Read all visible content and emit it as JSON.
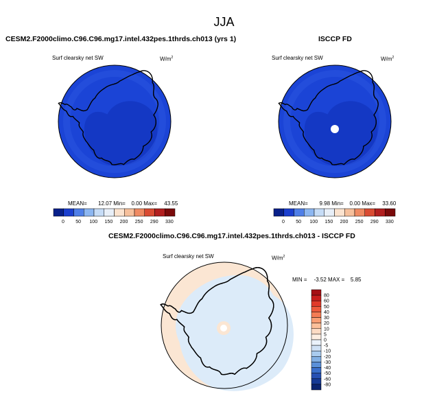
{
  "season": "JJA",
  "panels": [
    {
      "title": "CESM2.F2000climo.C96.C96.mg17.intel.432pes.1thrds.ch013 (yrs 1)",
      "variable": "Surf clearsky net SW",
      "units_base": "W/m",
      "units_exp": "2",
      "stats": {
        "mean_label": "MEAN=",
        "mean": "12.07",
        "min_label": "Min=",
        "min": "0.00",
        "max_label": "Max=",
        "max": "43.55"
      }
    },
    {
      "title": "ISCCP FD",
      "variable": "Surf clearsky net SW",
      "units_base": "W/m",
      "units_exp": "2",
      "stats": {
        "mean_label": "MEAN=",
        "mean": "9.98",
        "min_label": "Min=",
        "min": "0.00",
        "max_label": "Max=",
        "max": "33.60"
      }
    },
    {
      "title": "CESM2.F2000climo.C96.C96.mg17.intel.432pes.1thrds.ch013 - ISCCP FD",
      "variable": "Surf clearsky net SW",
      "units_base": "W/m",
      "units_exp": "2",
      "stats": {
        "min_label": "MIN =",
        "min": "-3.52",
        "max_label": "MAX =",
        "max": "5.85"
      }
    }
  ],
  "chart_data": [
    {
      "type": "heatmap",
      "projection": "south polar stereographic",
      "colorbar": {
        "orientation": "horizontal",
        "levels": [
          0,
          50,
          100,
          150,
          200,
          250,
          290,
          330
        ],
        "colors": [
          "#08208a",
          "#1b3fcf",
          "#4f7fe8",
          "#8db7f1",
          "#c6dcf6",
          "#e8eff8",
          "#fbe3cf",
          "#f6c09c",
          "#ef8a62",
          "#d94b32",
          "#b21f1f",
          "#7a0a0a"
        ]
      },
      "field_colors": {
        "land": "#0d1e9c",
        "ocean": "#1b44d6"
      }
    },
    {
      "type": "heatmap",
      "projection": "south polar stereographic",
      "colorbar": {
        "orientation": "horizontal",
        "levels": [
          0,
          50,
          100,
          150,
          200,
          250,
          290,
          330
        ],
        "colors": [
          "#08208a",
          "#1b3fcf",
          "#4f7fe8",
          "#8db7f1",
          "#c6dcf6",
          "#e8eff8",
          "#fbe3cf",
          "#f6c09c",
          "#ef8a62",
          "#d94b32",
          "#b21f1f",
          "#7a0a0a"
        ]
      },
      "field_colors": {
        "land": "#0d1e9c",
        "ocean": "#1b44d6"
      }
    },
    {
      "type": "heatmap",
      "projection": "south polar stereographic",
      "colorbar": {
        "orientation": "vertical",
        "levels": [
          80,
          60,
          50,
          40,
          30,
          20,
          10,
          5,
          0,
          -5,
          -10,
          -20,
          -30,
          -40,
          -50,
          -60,
          -80
        ],
        "colors": [
          "#a50f15",
          "#c81d1d",
          "#e03a2a",
          "#ee5a3c",
          "#f47c54",
          "#f89e74",
          "#fbbf9a",
          "#fddbc4",
          "#fdeee2",
          "#eaf2fb",
          "#cfe1f5",
          "#a9cbee",
          "#82b0e4",
          "#5a90d9",
          "#3a6fcc",
          "#2650b3",
          "#163a94",
          "#0b2570"
        ]
      },
      "field_colors": {
        "land": "#dcebf9",
        "ocean": "#fbe6d3"
      }
    }
  ]
}
